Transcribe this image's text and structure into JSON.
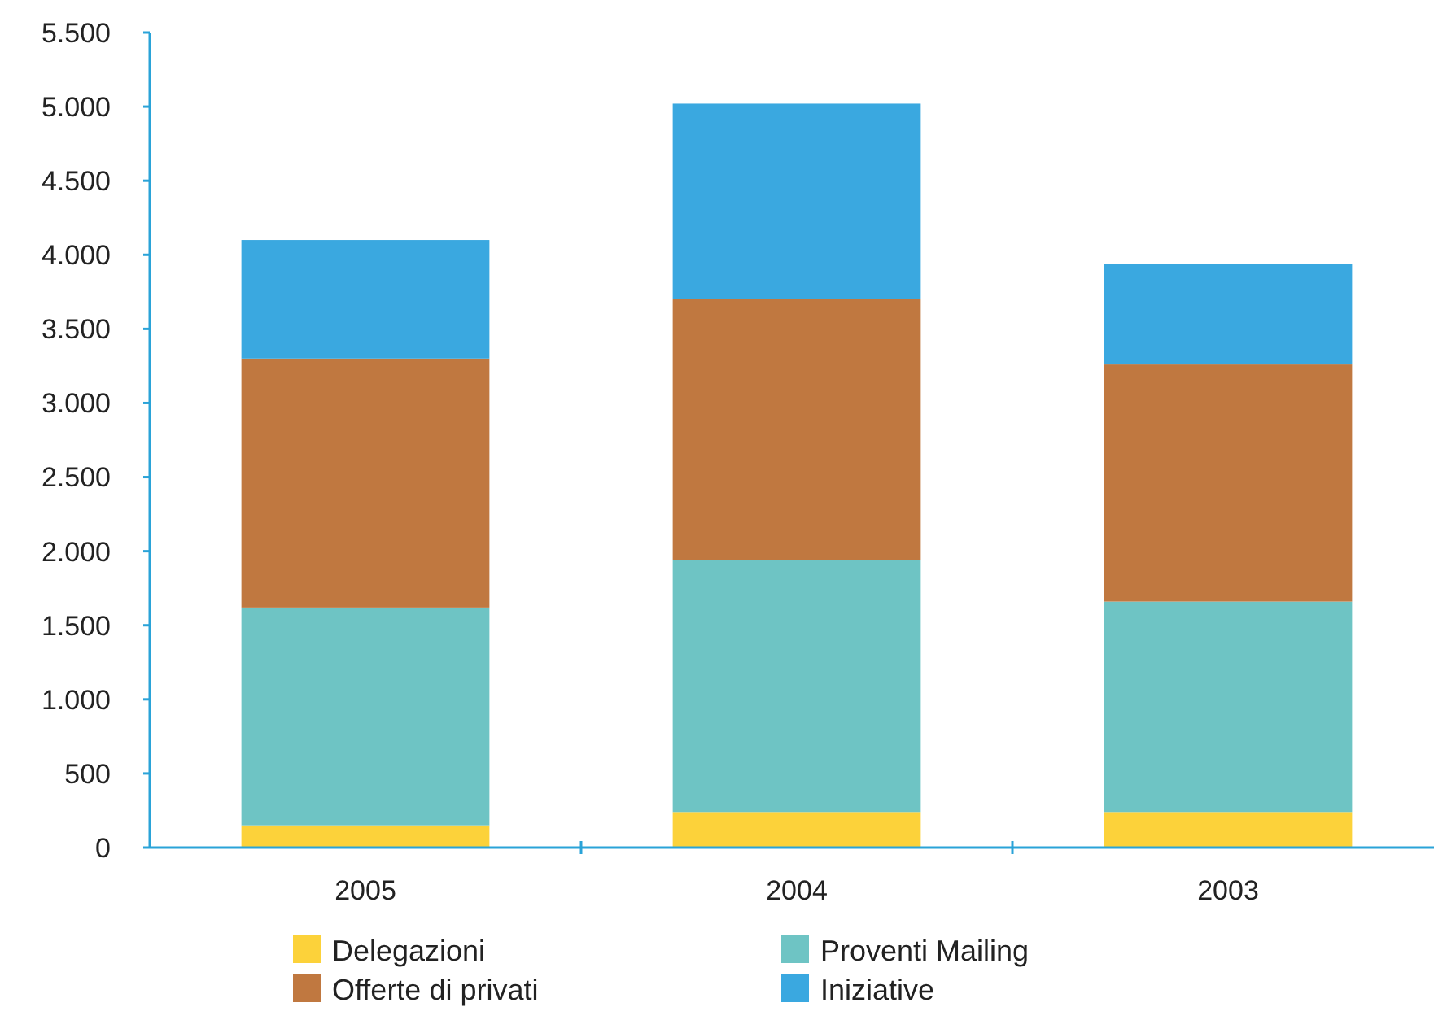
{
  "chart_data": {
    "type": "bar",
    "stacked": true,
    "categories": [
      "2005",
      "2004",
      "2003"
    ],
    "series": [
      {
        "name": "Delegazioni",
        "color": "#fcd23a",
        "values": [
          150,
          240,
          240
        ]
      },
      {
        "name": "Proventi Mailing",
        "color": "#6ec4c4",
        "values": [
          1470,
          1700,
          1420
        ]
      },
      {
        "name": "Offerte di privati",
        "color": "#c07840",
        "values": [
          1680,
          1760,
          1600
        ]
      },
      {
        "name": "Iniziative",
        "color": "#3aa8e0",
        "values": [
          800,
          1320,
          680
        ]
      }
    ],
    "ylim": [
      0,
      5500
    ],
    "yticks": [
      {
        "value": 0,
        "label": "0"
      },
      {
        "value": 500,
        "label": "500"
      },
      {
        "value": 1000,
        "label": "1.000"
      },
      {
        "value": 1500,
        "label": "1.500"
      },
      {
        "value": 2000,
        "label": "2.000"
      },
      {
        "value": 2500,
        "label": "2.500"
      },
      {
        "value": 3000,
        "label": "3.000"
      },
      {
        "value": 3500,
        "label": "3.500"
      },
      {
        "value": 4000,
        "label": "4.000"
      },
      {
        "value": 4500,
        "label": "4.500"
      },
      {
        "value": 5000,
        "label": "5.000"
      },
      {
        "value": 5500,
        "label": "5.500"
      }
    ],
    "grid": false,
    "legend": "bottom"
  }
}
